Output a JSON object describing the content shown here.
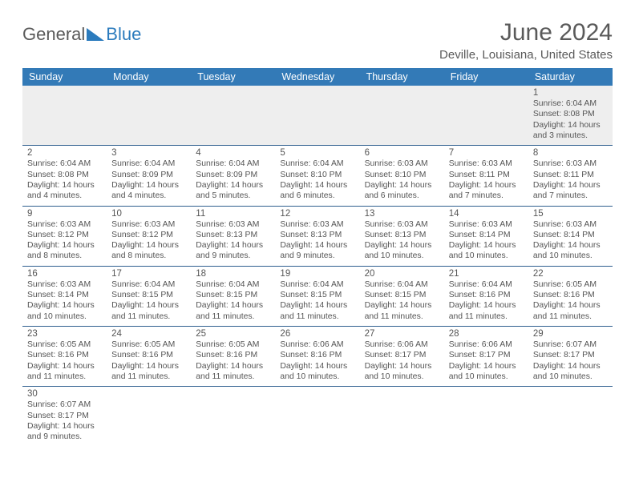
{
  "logo": {
    "text1": "General",
    "text2": "Blue",
    "color_general": "#5a5a5a",
    "color_blue": "#2b7bbd",
    "tri_color": "#2b7bbd"
  },
  "title": "June 2024",
  "location": "Deville, Louisiana, United States",
  "colors": {
    "header_bg": "#337ab7",
    "header_fg": "#ffffff",
    "row_border": "#2f5f8f",
    "text": "#555555",
    "first_row_bg": "#eeeeee",
    "page_bg": "#ffffff"
  },
  "day_headers": [
    "Sunday",
    "Monday",
    "Tuesday",
    "Wednesday",
    "Thursday",
    "Friday",
    "Saturday"
  ],
  "weeks": [
    [
      null,
      null,
      null,
      null,
      null,
      null,
      {
        "n": "1",
        "sr": "6:04 AM",
        "ss": "8:08 PM",
        "dl": "14 hours and 3 minutes."
      }
    ],
    [
      {
        "n": "2",
        "sr": "6:04 AM",
        "ss": "8:08 PM",
        "dl": "14 hours and 4 minutes."
      },
      {
        "n": "3",
        "sr": "6:04 AM",
        "ss": "8:09 PM",
        "dl": "14 hours and 4 minutes."
      },
      {
        "n": "4",
        "sr": "6:04 AM",
        "ss": "8:09 PM",
        "dl": "14 hours and 5 minutes."
      },
      {
        "n": "5",
        "sr": "6:04 AM",
        "ss": "8:10 PM",
        "dl": "14 hours and 6 minutes."
      },
      {
        "n": "6",
        "sr": "6:03 AM",
        "ss": "8:10 PM",
        "dl": "14 hours and 6 minutes."
      },
      {
        "n": "7",
        "sr": "6:03 AM",
        "ss": "8:11 PM",
        "dl": "14 hours and 7 minutes."
      },
      {
        "n": "8",
        "sr": "6:03 AM",
        "ss": "8:11 PM",
        "dl": "14 hours and 7 minutes."
      }
    ],
    [
      {
        "n": "9",
        "sr": "6:03 AM",
        "ss": "8:12 PM",
        "dl": "14 hours and 8 minutes."
      },
      {
        "n": "10",
        "sr": "6:03 AM",
        "ss": "8:12 PM",
        "dl": "14 hours and 8 minutes."
      },
      {
        "n": "11",
        "sr": "6:03 AM",
        "ss": "8:13 PM",
        "dl": "14 hours and 9 minutes."
      },
      {
        "n": "12",
        "sr": "6:03 AM",
        "ss": "8:13 PM",
        "dl": "14 hours and 9 minutes."
      },
      {
        "n": "13",
        "sr": "6:03 AM",
        "ss": "8:13 PM",
        "dl": "14 hours and 10 minutes."
      },
      {
        "n": "14",
        "sr": "6:03 AM",
        "ss": "8:14 PM",
        "dl": "14 hours and 10 minutes."
      },
      {
        "n": "15",
        "sr": "6:03 AM",
        "ss": "8:14 PM",
        "dl": "14 hours and 10 minutes."
      }
    ],
    [
      {
        "n": "16",
        "sr": "6:03 AM",
        "ss": "8:14 PM",
        "dl": "14 hours and 10 minutes."
      },
      {
        "n": "17",
        "sr": "6:04 AM",
        "ss": "8:15 PM",
        "dl": "14 hours and 11 minutes."
      },
      {
        "n": "18",
        "sr": "6:04 AM",
        "ss": "8:15 PM",
        "dl": "14 hours and 11 minutes."
      },
      {
        "n": "19",
        "sr": "6:04 AM",
        "ss": "8:15 PM",
        "dl": "14 hours and 11 minutes."
      },
      {
        "n": "20",
        "sr": "6:04 AM",
        "ss": "8:15 PM",
        "dl": "14 hours and 11 minutes."
      },
      {
        "n": "21",
        "sr": "6:04 AM",
        "ss": "8:16 PM",
        "dl": "14 hours and 11 minutes."
      },
      {
        "n": "22",
        "sr": "6:05 AM",
        "ss": "8:16 PM",
        "dl": "14 hours and 11 minutes."
      }
    ],
    [
      {
        "n": "23",
        "sr": "6:05 AM",
        "ss": "8:16 PM",
        "dl": "14 hours and 11 minutes."
      },
      {
        "n": "24",
        "sr": "6:05 AM",
        "ss": "8:16 PM",
        "dl": "14 hours and 11 minutes."
      },
      {
        "n": "25",
        "sr": "6:05 AM",
        "ss": "8:16 PM",
        "dl": "14 hours and 11 minutes."
      },
      {
        "n": "26",
        "sr": "6:06 AM",
        "ss": "8:16 PM",
        "dl": "14 hours and 10 minutes."
      },
      {
        "n": "27",
        "sr": "6:06 AM",
        "ss": "8:17 PM",
        "dl": "14 hours and 10 minutes."
      },
      {
        "n": "28",
        "sr": "6:06 AM",
        "ss": "8:17 PM",
        "dl": "14 hours and 10 minutes."
      },
      {
        "n": "29",
        "sr": "6:07 AM",
        "ss": "8:17 PM",
        "dl": "14 hours and 10 minutes."
      }
    ],
    [
      {
        "n": "30",
        "sr": "6:07 AM",
        "ss": "8:17 PM",
        "dl": "14 hours and 9 minutes."
      },
      null,
      null,
      null,
      null,
      null,
      null
    ]
  ],
  "labels": {
    "sunrise": "Sunrise:",
    "sunset": "Sunset:",
    "daylight": "Daylight:"
  }
}
